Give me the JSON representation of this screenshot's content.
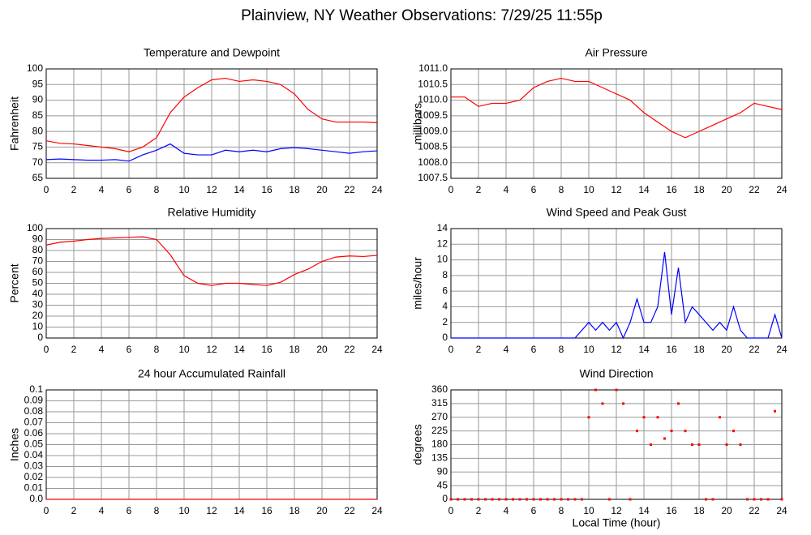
{
  "title": "Plainview, NY Weather Observations: 7/29/25 11:55p",
  "chart_data": [
    {
      "type": "line",
      "title": "Temperature and Dewpoint",
      "ylabel": "Fahrenheit",
      "grid": true,
      "x": [
        0,
        1,
        2,
        3,
        4,
        5,
        6,
        7,
        8,
        9,
        10,
        11,
        12,
        13,
        14,
        15,
        16,
        17,
        18,
        19,
        20,
        21,
        22,
        23,
        24
      ],
      "series": [
        {
          "color": "#ff0000",
          "values": [
            77,
            76.2,
            76,
            75.5,
            75,
            74.5,
            73.5,
            75,
            78,
            86,
            91,
            94,
            96.5,
            97,
            96,
            96.5,
            96,
            95,
            92,
            87,
            84,
            83,
            83,
            83,
            82.8
          ]
        },
        {
          "color": "#0000ff",
          "values": [
            71,
            71.2,
            71,
            70.8,
            70.8,
            71,
            70.5,
            72.5,
            74,
            76,
            73,
            72.5,
            72.5,
            74,
            73.5,
            74,
            73.5,
            74.5,
            74.8,
            74.5,
            74,
            73.5,
            73,
            73.5,
            73.8
          ]
        }
      ],
      "xlim": [
        0,
        24
      ],
      "xticks": [
        0,
        2,
        4,
        6,
        8,
        10,
        12,
        14,
        16,
        18,
        20,
        22,
        24
      ],
      "ylim": [
        65,
        100
      ],
      "yticks": [
        65,
        70,
        75,
        80,
        85,
        90,
        95,
        100
      ]
    },
    {
      "type": "line",
      "title": "Air Pressure",
      "ylabel": "millibars",
      "grid": true,
      "x": [
        0,
        1,
        2,
        3,
        4,
        5,
        6,
        7,
        8,
        9,
        10,
        11,
        12,
        13,
        14,
        15,
        16,
        17,
        18,
        19,
        20,
        21,
        22,
        23,
        24
      ],
      "series": [
        {
          "color": "#ff0000",
          "values": [
            1010.1,
            1010.1,
            1009.8,
            1009.9,
            1009.9,
            1010,
            1010.4,
            1010.6,
            1010.7,
            1010.6,
            1010.6,
            1010.4,
            1010.2,
            1010,
            1009.6,
            1009.3,
            1009,
            1008.8,
            1009,
            1009.2,
            1009.4,
            1009.6,
            1009.9,
            1009.8,
            1009.7
          ]
        }
      ],
      "xlim": [
        0,
        24
      ],
      "xticks": [
        0,
        2,
        4,
        6,
        8,
        10,
        12,
        14,
        16,
        18,
        20,
        22,
        24
      ],
      "ylim": [
        1007.5,
        1011
      ],
      "yticks": [
        1007.5,
        {
          "value": 1008,
          "label": "1008.0"
        },
        1008.5,
        {
          "value": 1009,
          "label": "1009.0"
        },
        1009.5,
        {
          "value": 1010,
          "label": "1010.0"
        },
        1010.5,
        {
          "value": 1011,
          "label": "1011.0"
        }
      ]
    },
    {
      "type": "line",
      "title": "Relative Humidity",
      "ylabel": "Percent",
      "grid": true,
      "x": [
        0,
        1,
        2,
        3,
        4,
        5,
        6,
        7,
        8,
        9,
        10,
        11,
        12,
        13,
        14,
        15,
        16,
        17,
        18,
        19,
        20,
        21,
        22,
        23,
        24
      ],
      "series": [
        {
          "color": "#ff0000",
          "values": [
            85,
            87.5,
            88.5,
            90,
            91,
            91.5,
            92,
            92.5,
            90,
            76,
            57,
            50,
            48,
            50,
            50,
            49,
            48,
            51,
            58,
            63,
            70,
            74,
            75,
            74.5,
            75.5
          ]
        }
      ],
      "xlim": [
        0,
        24
      ],
      "xticks": [
        0,
        2,
        4,
        6,
        8,
        10,
        12,
        14,
        16,
        18,
        20,
        22,
        24
      ],
      "ylim": [
        0,
        100
      ],
      "yticks": [
        0,
        10,
        20,
        30,
        40,
        50,
        60,
        70,
        80,
        90,
        100
      ]
    },
    {
      "type": "line",
      "title": "Wind Speed and Peak Gust",
      "ylabel": "miles/hour",
      "grid": true,
      "x": [
        0,
        0.5,
        1,
        1.5,
        2,
        2.5,
        3,
        3.5,
        4,
        4.5,
        5,
        5.5,
        6,
        6.5,
        7,
        7.5,
        8,
        8.5,
        9,
        9.5,
        10,
        10.5,
        11,
        11.5,
        12,
        12.5,
        13,
        13.5,
        14,
        14.5,
        15,
        15.5,
        16,
        16.5,
        17,
        17.5,
        18,
        18.5,
        19,
        19.5,
        20,
        20.5,
        21,
        21.5,
        22,
        22.5,
        23,
        23.5,
        24
      ],
      "series": [
        {
          "color": "#0000ff",
          "values": [
            0,
            0,
            0,
            0,
            0,
            0,
            0,
            0,
            0,
            0,
            0,
            0,
            0,
            0,
            0,
            0,
            0,
            0,
            0,
            1,
            2,
            1,
            2,
            1,
            2,
            0,
            2,
            5,
            2,
            2,
            4,
            11,
            3,
            9,
            2,
            4,
            3,
            2,
            1,
            2,
            1,
            4,
            1,
            0,
            0,
            0,
            0,
            3,
            0
          ]
        }
      ],
      "xlim": [
        0,
        24
      ],
      "xticks": [
        0,
        2,
        4,
        6,
        8,
        10,
        12,
        14,
        16,
        18,
        20,
        22,
        24
      ],
      "ylim": [
        0,
        14
      ],
      "yticks": [
        0,
        2,
        4,
        6,
        8,
        10,
        12,
        14
      ]
    },
    {
      "type": "line",
      "title": "24 hour Accumulated Rainfall",
      "ylabel": "Inches",
      "grid": true,
      "x": [
        0,
        1,
        2,
        3,
        4,
        5,
        6,
        7,
        8,
        9,
        10,
        11,
        12,
        13,
        14,
        15,
        16,
        17,
        18,
        19,
        20,
        21,
        22,
        23,
        24
      ],
      "series": [
        {
          "color": "#ff0000",
          "values": [
            0,
            0,
            0,
            0,
            0,
            0,
            0,
            0,
            0,
            0,
            0,
            0,
            0,
            0,
            0,
            0,
            0,
            0,
            0,
            0,
            0,
            0,
            0,
            0,
            0
          ]
        }
      ],
      "xlim": [
        0,
        24
      ],
      "xticks": [
        0,
        2,
        4,
        6,
        8,
        10,
        12,
        14,
        16,
        18,
        20,
        22,
        24
      ],
      "ylim": [
        0,
        0.1
      ],
      "yticks": [
        {
          "value": 0,
          "label": "0.0"
        },
        0.01,
        0.02,
        0.03,
        0.04,
        0.05,
        0.06,
        0.07,
        0.08,
        0.09,
        0.1
      ]
    },
    {
      "type": "scatter",
      "title": "Wind Direction",
      "ylabel": "degrees",
      "xlabel": "Local Time (hour)",
      "grid": true,
      "x": [
        0,
        0.5,
        1,
        1.5,
        2,
        2.5,
        3,
        3.5,
        4,
        4.5,
        5,
        5.5,
        6,
        6.5,
        7,
        7.5,
        8,
        8.5,
        9,
        9.5,
        10,
        10.5,
        11,
        11.5,
        12,
        12.5,
        13,
        13.5,
        14,
        14.5,
        15,
        15.5,
        16,
        16.5,
        17,
        17.5,
        18,
        18.5,
        19,
        19.5,
        20,
        20.5,
        21,
        21.5,
        22,
        22.5,
        23,
        23.5,
        24
      ],
      "series": [
        {
          "color": "#ff0000",
          "values": [
            0,
            0,
            0,
            0,
            0,
            0,
            0,
            0,
            0,
            0,
            0,
            0,
            0,
            0,
            0,
            0,
            0,
            0,
            0,
            0,
            270,
            360,
            315,
            0,
            360,
            315,
            0,
            225,
            270,
            180,
            270,
            200,
            225,
            315,
            225,
            180,
            180,
            0,
            0,
            270,
            180,
            225,
            180,
            0,
            0,
            0,
            0,
            290,
            0
          ]
        }
      ],
      "xlim": [
        0,
        24
      ],
      "xticks": [
        0,
        2,
        4,
        6,
        8,
        10,
        12,
        14,
        16,
        18,
        20,
        22,
        24
      ],
      "ylim": [
        0,
        360
      ],
      "yticks": [
        0,
        45,
        90,
        135,
        180,
        225,
        270,
        315,
        360
      ]
    }
  ]
}
